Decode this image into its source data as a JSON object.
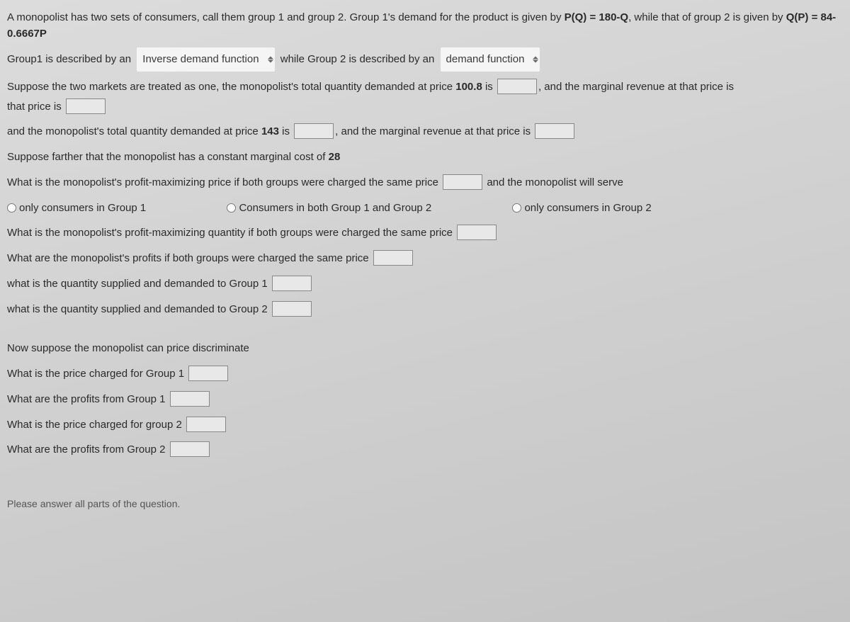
{
  "intro": {
    "part1": "A monopolist has two sets of consumers, call them group 1 and group 2. Group 1's demand for the product is given by ",
    "eq1": "P(Q) = 180-Q",
    "part2": ", while that of group 2 is given by ",
    "eq2": "Q(P) = 84-0.6667P"
  },
  "line2": {
    "t1": "Group1 is described by an",
    "dropdown1": "Inverse demand function",
    "t2": "while Group 2 is described by an",
    "dropdown2": "demand function"
  },
  "line3": {
    "t1": "Suppose the two markets are treated as one, the monopolist's total quantity demanded at price ",
    "price1": "100.8",
    "t2": " is ",
    "t3": ", and the marginal revenue at that price is "
  },
  "line4": {
    "t1": "and the monopolist's total quantity demanded at price ",
    "price2": "143",
    "t2": " is ",
    "t3": ", and the marginal revenue at that price is "
  },
  "line5": {
    "t1": "Suppose farther that the monopolist has a constant marginal cost of ",
    "mc": "28"
  },
  "line6": {
    "t1": "What is the monopolist's profit-maximizing price if both groups were charged the same price ",
    "t2": " and the monopolist will serve"
  },
  "radios": {
    "r1": "only consumers in Group 1",
    "r2": "Consumers in both Group 1 and Group 2",
    "r3": "only consumers in Group 2"
  },
  "line7": "What is the monopolist's profit-maximizing quantity if both groups were charged the same price ",
  "line8": "What are the monopolist's profits if both groups were charged the same price ",
  "line9": "what is the quantity supplied and demanded to Group 1 ",
  "line10": "what is the quantity supplied and demanded to Group 2 ",
  "section2": {
    "heading": "Now suppose the monopolist can price discriminate",
    "l1": "What is the price charged for Group 1 ",
    "l2": "What are the profits from Group 1 ",
    "l3": "What is the price charged for group 2 ",
    "l4": "What are the profits from Group 2 "
  },
  "footer": "Please answer all parts of the question."
}
